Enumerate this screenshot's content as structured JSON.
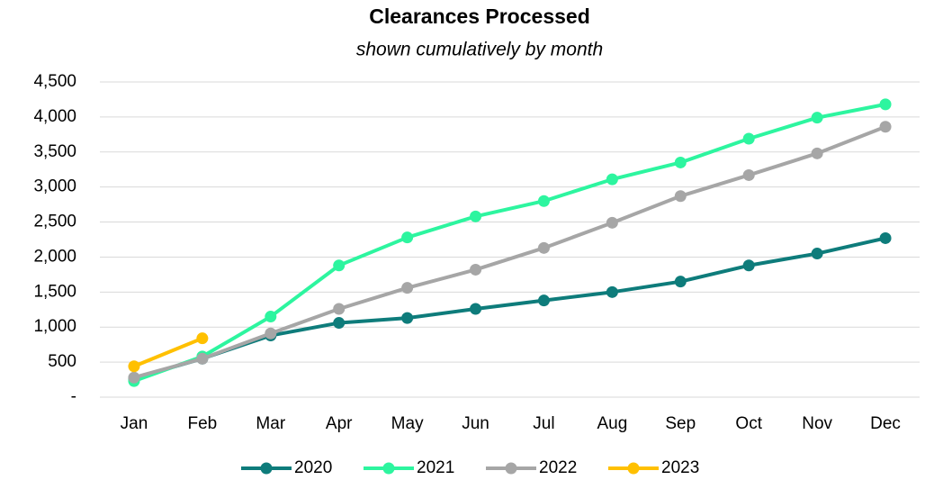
{
  "chart_data": {
    "type": "line",
    "title": "Clearances Processed",
    "subtitle": "shown cumulatively by month",
    "categories": [
      "Jan",
      "Feb",
      "Mar",
      "Apr",
      "May",
      "Jun",
      "Jul",
      "Aug",
      "Sep",
      "Oct",
      "Nov",
      "Dec"
    ],
    "series": [
      {
        "name": "2020",
        "color": "#0e7c7b",
        "values": [
          270,
          550,
          880,
          1060,
          1130,
          1260,
          1380,
          1500,
          1650,
          1880,
          2050,
          2270
        ]
      },
      {
        "name": "2021",
        "color": "#2df59f",
        "values": [
          230,
          580,
          1150,
          1880,
          2280,
          2580,
          2800,
          3110,
          3350,
          3690,
          3990,
          4180
        ]
      },
      {
        "name": "2022",
        "color": "#a6a6a6",
        "values": [
          280,
          550,
          910,
          1260,
          1560,
          1820,
          2130,
          2490,
          2870,
          3170,
          3480,
          3860
        ]
      },
      {
        "name": "2023",
        "color": "#ffc000",
        "values": [
          440,
          840,
          null,
          null,
          null,
          null,
          null,
          null,
          null,
          null,
          null,
          null
        ]
      }
    ],
    "ylim": [
      0,
      4500
    ],
    "yticks": [
      {
        "value": 0,
        "label": "-"
      },
      500,
      {
        "value": 1000,
        "label": "1,000"
      },
      {
        "value": 1500,
        "label": "1,500"
      },
      {
        "value": 2000,
        "label": "2,000"
      },
      {
        "value": 2500,
        "label": "2,500"
      },
      {
        "value": 3000,
        "label": "3,000"
      },
      {
        "value": 3500,
        "label": "3,500"
      },
      {
        "value": 4000,
        "label": "4,000"
      },
      {
        "value": 4500,
        "label": "4,500"
      }
    ],
    "grid": true,
    "legend": "bottom"
  }
}
